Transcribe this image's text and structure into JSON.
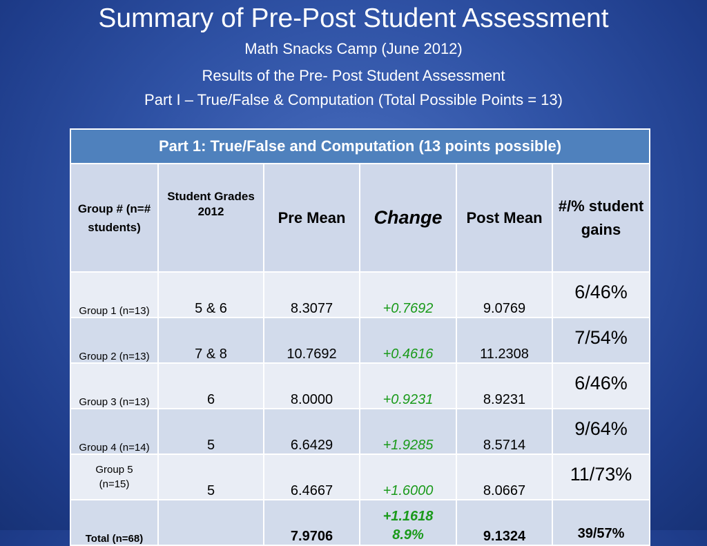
{
  "header": {
    "title": "Summary of Pre-Post Student Assessment",
    "subtitle": "Math Snacks Camp (June 2012)",
    "line3": "Results of the Pre- Post Student Assessment",
    "line4": "Part I – True/False & Computation (Total Possible Points = 13)"
  },
  "table": {
    "caption": "Part 1: True/False and Computation (13 points possible)",
    "columns": {
      "group": "Group # (n=# students)",
      "grades": "Student Grades 2012",
      "pre": "Pre Mean",
      "change": "Change",
      "post": "Post Mean",
      "gains": "#/% student gains"
    },
    "rows": [
      {
        "group": "Group 1 (n=13)",
        "grades": "5 & 6",
        "pre": "8.3077",
        "change": "+0.7692",
        "post": "9.0769",
        "gains": "6/46%"
      },
      {
        "group": "Group 2 (n=13)",
        "grades": "7 & 8",
        "pre": "10.7692",
        "change": "+0.4616",
        "post": "11.2308",
        "gains": "7/54%"
      },
      {
        "group": "Group 3 (n=13)",
        "grades": "6",
        "pre": "8.0000",
        "change": "+0.9231",
        "post": "8.9231",
        "gains": "6/46%"
      },
      {
        "group": "Group 4 (n=14)",
        "grades": "5",
        "pre": "6.6429",
        "change": "+1.9285",
        "post": "8.5714",
        "gains": "9/64%"
      },
      {
        "group": "Group 5 (n=15)",
        "grades": "5",
        "pre": "6.4667",
        "change": "+1.6000",
        "post": "8.0667",
        "gains": "11/73%"
      }
    ],
    "total": {
      "group": "Total (n=68)",
      "grades": "",
      "pre": "7.9706",
      "change": "+1.1618",
      "change_pct": "8.9%",
      "post": "9.1324",
      "gains": "39/57%"
    }
  },
  "colors": {
    "caption_bg": "#4f81bd",
    "header_bg": "#cfd8ea",
    "row_light": "#e9edf5",
    "row_dark": "#d2dbeb",
    "change_text": "#1a9a1a"
  }
}
